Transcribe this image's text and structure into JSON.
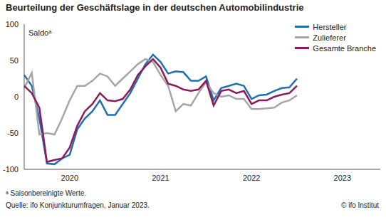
{
  "chart_data": {
    "type": "line",
    "title": "Beurteilung der Geschäftslage in der deutschen Automobilindustrie",
    "y_label": "Saldoᵃ",
    "footnote": "ᵃ Saisonbereinigte Werte.",
    "source": "Quelle: ifo Konjunkturumfragen, Januar 2023.",
    "credit": "© ifo Institut",
    "categories": [
      null,
      null,
      null,
      null,
      null,
      null,
      "2020",
      null,
      null,
      null,
      null,
      null,
      null,
      null,
      null,
      null,
      null,
      null,
      "2021",
      null,
      null,
      null,
      null,
      null,
      null,
      null,
      null,
      null,
      null,
      null,
      "2022",
      null,
      null,
      null,
      null,
      null,
      null,
      null,
      null,
      null,
      null,
      null,
      "2023",
      null,
      null,
      null,
      null,
      null
    ],
    "series": [
      {
        "name": "Hersteller",
        "color": "#1f6fb2",
        "values": [
          30,
          15,
          -30,
          -92,
          -93,
          -85,
          -80,
          -45,
          -30,
          -20,
          -5,
          -25,
          -25,
          -10,
          5,
          25,
          45,
          58,
          48,
          32,
          35,
          34,
          22,
          22,
          28,
          -5,
          12,
          15,
          18,
          15,
          -3,
          2,
          3,
          8,
          12,
          13,
          25,
          null,
          null,
          null,
          null,
          null,
          null,
          null,
          null,
          null,
          null,
          null
        ]
      },
      {
        "name": "Zulieferer",
        "color": "#a6a6a6",
        "values": [
          12,
          33,
          -52,
          -50,
          -52,
          -30,
          -5,
          15,
          15,
          22,
          32,
          28,
          15,
          25,
          35,
          45,
          52,
          48,
          30,
          15,
          -20,
          -10,
          -12,
          5,
          20,
          5,
          0,
          2,
          -3,
          -3,
          -17,
          -17,
          -16,
          -15,
          -8,
          -5,
          2,
          null,
          null,
          null,
          null,
          null,
          null,
          null,
          null,
          null,
          null,
          null
        ]
      },
      {
        "name": "Gesamte Branche",
        "color": "#8e1a5e",
        "values": [
          15,
          5,
          -15,
          -90,
          -87,
          -85,
          -70,
          -40,
          -20,
          -10,
          5,
          -5,
          -6,
          -3,
          10,
          30,
          42,
          52,
          40,
          18,
          15,
          10,
          8,
          10,
          22,
          -12,
          8,
          10,
          5,
          8,
          -10,
          -5,
          -5,
          0,
          3,
          5,
          15,
          null,
          null,
          null,
          null,
          null,
          null,
          null,
          null,
          null,
          null,
          null
        ]
      }
    ],
    "ylim": [
      -100,
      100
    ],
    "yticks": [
      -100,
      -50,
      0,
      50,
      100
    ],
    "grid": false,
    "legend": "upper right"
  }
}
